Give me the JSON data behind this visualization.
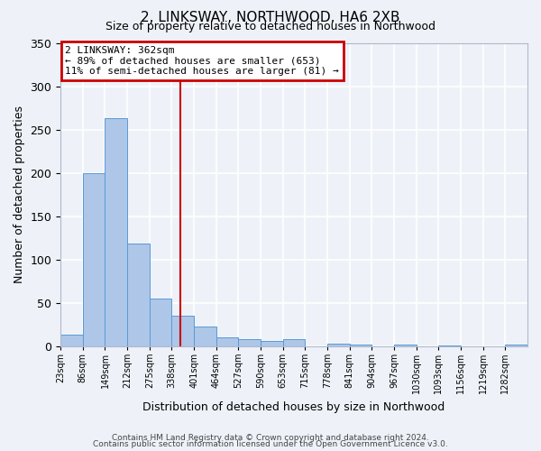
{
  "title": "2, LINKSWAY, NORTHWOOD, HA6 2XB",
  "subtitle": "Size of property relative to detached houses in Northwood",
  "xlabel": "Distribution of detached houses by size in Northwood",
  "ylabel": "Number of detached properties",
  "bar_values": [
    13,
    200,
    263,
    118,
    55,
    35,
    23,
    10,
    8,
    6,
    8,
    0,
    3,
    2,
    0,
    2,
    0,
    1,
    0,
    0,
    2
  ],
  "bin_labels": [
    "23sqm",
    "86sqm",
    "149sqm",
    "212sqm",
    "275sqm",
    "338sqm",
    "401sqm",
    "464sqm",
    "527sqm",
    "590sqm",
    "653sqm",
    "715sqm",
    "778sqm",
    "841sqm",
    "904sqm",
    "967sqm",
    "1030sqm",
    "1093sqm",
    "1156sqm",
    "1219sqm",
    "1282sqm"
  ],
  "bar_color": "#aec6e8",
  "bar_edge_color": "#5b9bd5",
  "vline_x": 5.37,
  "vline_color": "#cc0000",
  "annotation_box_text": "2 LINKSWAY: 362sqm\n← 89% of detached houses are smaller (653)\n11% of semi-detached houses are larger (81) →",
  "annotation_box_color": "#cc0000",
  "ylim": [
    0,
    350
  ],
  "yticks": [
    0,
    50,
    100,
    150,
    200,
    250,
    300,
    350
  ],
  "footer1": "Contains HM Land Registry data © Crown copyright and database right 2024.",
  "footer2": "Contains public sector information licensed under the Open Government Licence v3.0.",
  "background_color": "#eef2f8",
  "grid_color": "#ffffff"
}
